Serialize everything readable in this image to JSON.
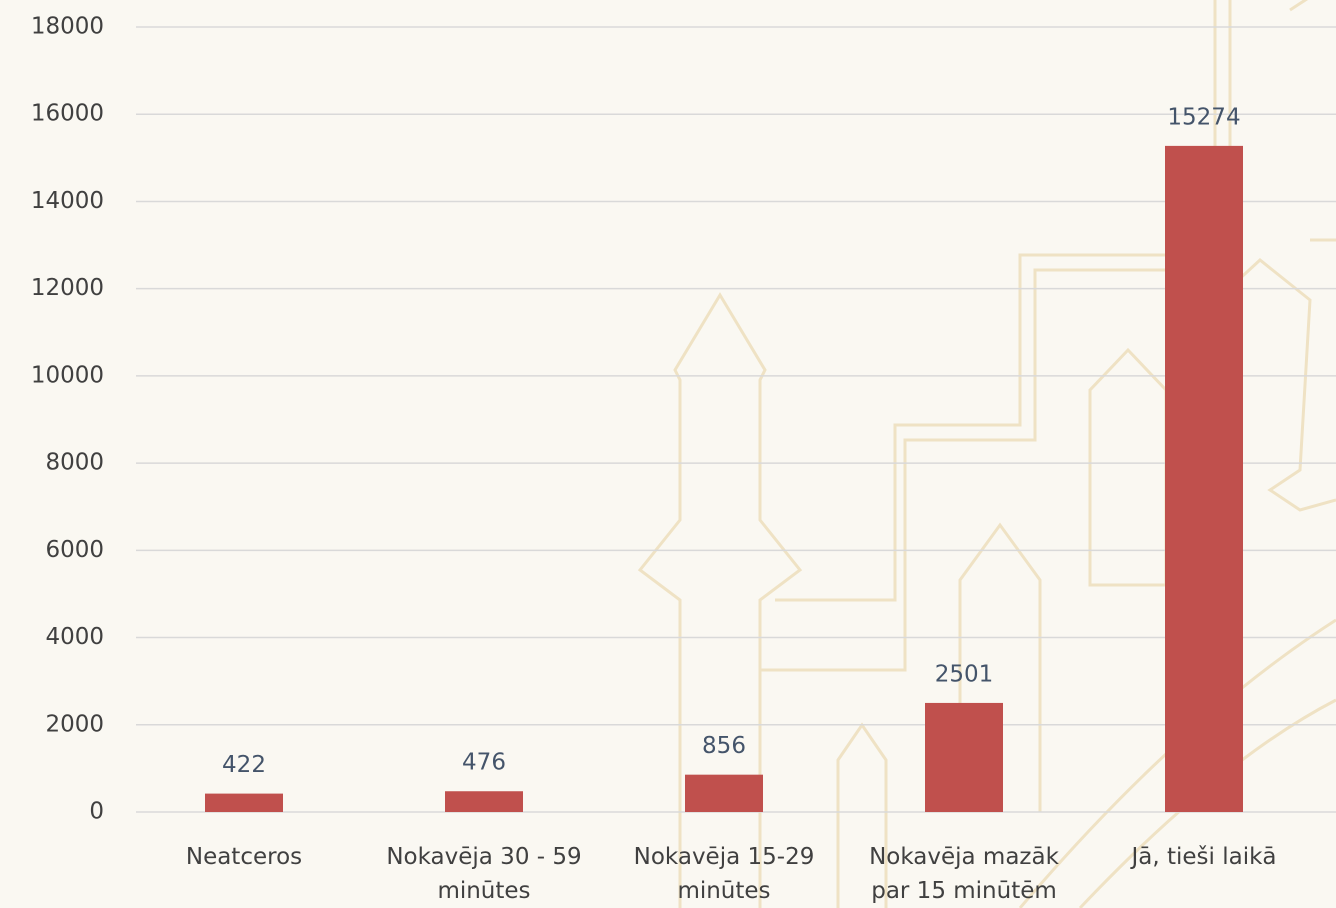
{
  "chart_data": {
    "type": "bar",
    "categories": [
      "Neatceros",
      "Nokavēja 30 - 59 minūtes",
      "Nokavēja 15-29 minūtes",
      "Nokavēja mazāk par 15 minūtēm",
      "Jā, tieši laikā"
    ],
    "values": [
      422,
      476,
      856,
      2501,
      15274
    ],
    "color": "#c0504d",
    "ylim": [
      0,
      18000
    ],
    "yticks": [
      0,
      2000,
      4000,
      6000,
      8000,
      10000,
      12000,
      14000,
      16000,
      18000
    ],
    "grid": true
  }
}
